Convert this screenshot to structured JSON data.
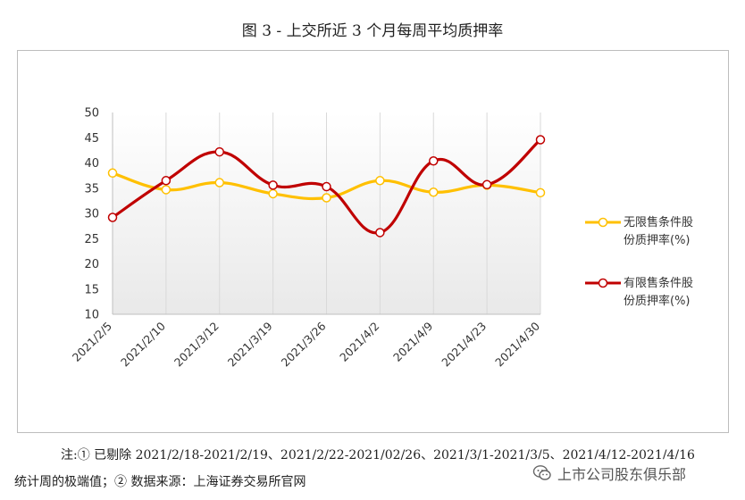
{
  "title": "图 3 -  上交所近 3 个月每周平均质押率",
  "chart_data": {
    "type": "line",
    "categories": [
      "2021/2/5",
      "2021/2/10",
      "2021/3/12",
      "2021/3/19",
      "2021/3/26",
      "2021/4/2",
      "2021/4/9",
      "2021/4/23",
      "2021/4/30"
    ],
    "ylim": [
      10,
      50
    ],
    "yticks": [
      "10",
      "15",
      "20",
      "25",
      "30",
      "35",
      "40",
      "45",
      "50"
    ],
    "series": [
      {
        "name": "无限售条件股份质押率(%)",
        "color": "#FFC000",
        "values": [
          38.0,
          34.7,
          36.1,
          33.9,
          33.1,
          36.5,
          34.2,
          35.6,
          34.1
        ]
      },
      {
        "name": "有限售条件股份质押率(%)",
        "color": "#C00000",
        "values": [
          29.2,
          36.5,
          42.2,
          35.6,
          35.3,
          26.2,
          40.4,
          35.7,
          44.6
        ]
      }
    ],
    "legend": {
      "placement": "right",
      "entries": [
        {
          "line1": "无限售条件股",
          "line2": "份质押率(%)"
        },
        {
          "line1": "有限售条件股",
          "line2": "份质押率(%)"
        }
      ]
    },
    "grid": "vertical"
  },
  "notes": {
    "line1": "注:①  已剔除 2021/2/18-2021/2/19、2021/2/22-2021/02/26、2021/3/1-2021/3/5、2021/4/12-2021/4/16",
    "line2": "统计周的极端值；②  数据来源：上海证券交易所官网"
  },
  "watermark": {
    "icon": "wechat-icon",
    "text": "上市公司股东俱乐部"
  }
}
